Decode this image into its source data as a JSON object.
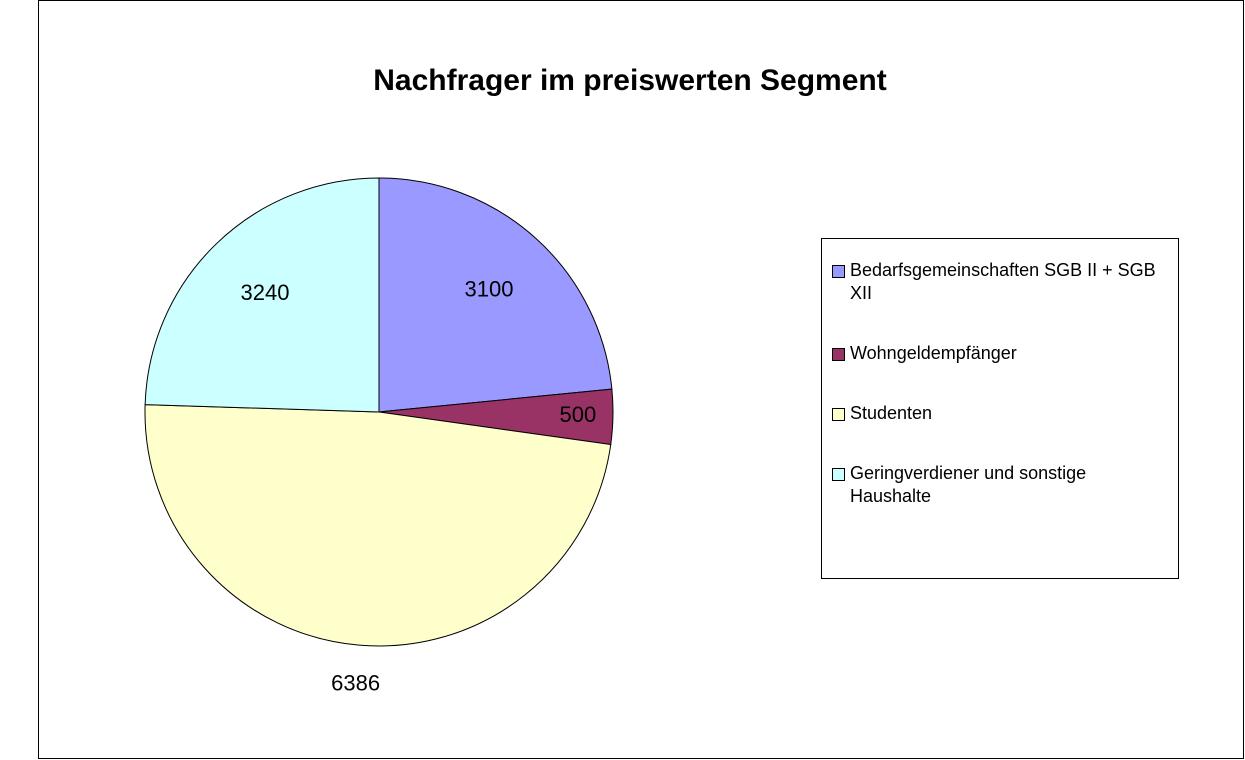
{
  "chart_data": {
    "type": "pie",
    "title": "Nachfrager im preiswerten Segment",
    "categories": [
      "Bedarfsgemeinschaften SGB II + SGB XII",
      "Wohngeldempfänger",
      "Studenten",
      "Geringverdiener und sonstige Haushalte"
    ],
    "values": [
      3100,
      500,
      6386,
      3240
    ],
    "colors": [
      "#9999ff",
      "#993366",
      "#ffffcc",
      "#ccffff"
    ],
    "legend": "right"
  }
}
